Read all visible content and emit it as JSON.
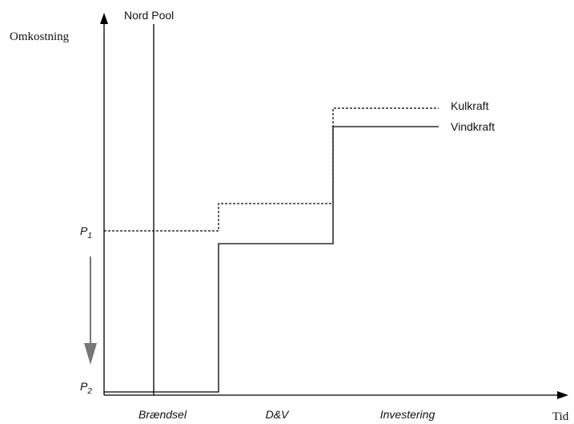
{
  "y_axis_label": "Omkostning",
  "x_axis_label": "Tid",
  "market_line_label": "Nord Pool",
  "curves": [
    {
      "label": "Kulkraft"
    },
    {
      "label": "Vindkraft"
    }
  ],
  "price_levels": [
    {
      "letter": "P",
      "subscript": "1"
    },
    {
      "letter": "P",
      "subscript": "2"
    }
  ],
  "cost_components": [
    "Brændsel",
    "D&V",
    "Investering"
  ]
}
